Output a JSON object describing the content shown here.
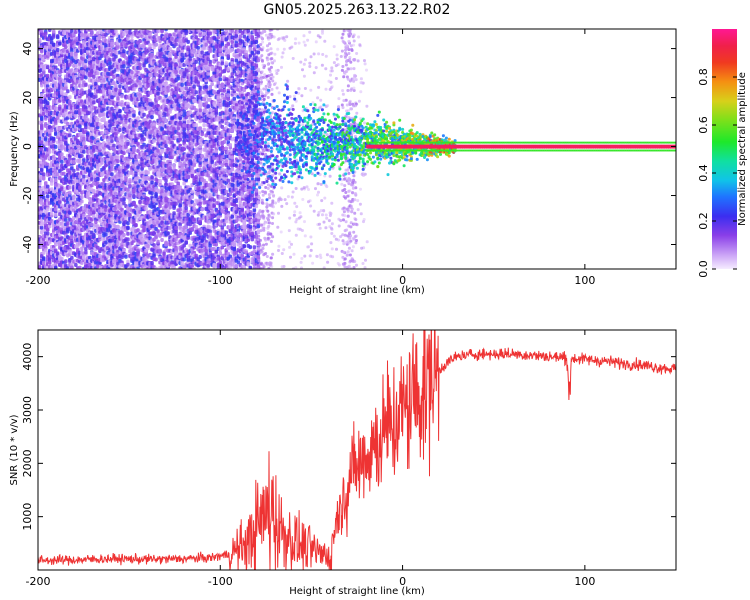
{
  "title": "GN05.2025.263.13.22.R02",
  "chart_data": [
    {
      "type": "heatmap",
      "title": "GN05.2025.263.13.22.R02",
      "xlabel": "Height of straight line (km)",
      "ylabel": "Frequency (Hz)",
      "xlim": [
        -200,
        150
      ],
      "ylim": [
        -50,
        48
      ],
      "x_ticks": [
        -200,
        -100,
        0,
        100
      ],
      "y_ticks": [
        40,
        20,
        0,
        -20,
        -40
      ],
      "colorbar": {
        "label": "Normalized spectral amplitude",
        "range": [
          0.0,
          1.0
        ],
        "ticks": [
          0.0,
          0.2,
          0.4,
          0.6,
          0.8
        ],
        "tick_labels": [
          "0.0",
          "0.2",
          "0.4",
          "0.6",
          "0.8"
        ]
      },
      "description_regions": [
        {
          "x_range": [
            -200,
            -80
          ],
          "freq_spread": 48,
          "amplitude": 0.15
        },
        {
          "x_range": [
            -90,
            -30
          ],
          "freq_spread": 10,
          "amplitude": 0.35
        },
        {
          "x_range": [
            -30,
            25
          ],
          "freq_spread": 4,
          "amplitude": 0.6
        },
        {
          "x_range": [
            25,
            150
          ],
          "freq_spread": 1,
          "amplitude": 0.95
        }
      ]
    },
    {
      "type": "line",
      "xlabel": "Height of straight line (km)",
      "ylabel": "SNR (10 * v/v)",
      "xlim": [
        -200,
        150
      ],
      "ylim": [
        0,
        4500
      ],
      "x_ticks": [
        -200,
        -100,
        0,
        100
      ],
      "y_ticks": [
        1000,
        2000,
        3000,
        4000
      ],
      "series": [
        {
          "name": "SNR",
          "color": "#ee3333",
          "x": [
            -200,
            -180,
            -160,
            -140,
            -120,
            -105,
            -95,
            -85,
            -78,
            -72,
            -68,
            -62,
            -55,
            -48,
            -40,
            -36,
            -32,
            -28,
            -24,
            -20,
            -16,
            -12,
            -8,
            -4,
            0,
            5,
            10,
            15,
            20,
            25,
            30,
            40,
            50,
            60,
            70,
            80,
            90,
            100,
            110,
            120,
            130,
            140,
            150
          ],
          "y": [
            180,
            190,
            210,
            200,
            210,
            230,
            300,
            500,
            900,
            1200,
            800,
            600,
            450,
            350,
            250,
            1000,
            1400,
            1800,
            2000,
            2200,
            2350,
            2500,
            2650,
            2800,
            2950,
            3150,
            3350,
            3550,
            3750,
            3900,
            4000,
            4050,
            4050,
            4050,
            4030,
            4000,
            3980,
            3950,
            3920,
            3880,
            3850,
            3800,
            3770
          ]
        }
      ]
    }
  ],
  "colors": {
    "snr_line": "#ee3333",
    "heat_background": "#ffffff"
  }
}
